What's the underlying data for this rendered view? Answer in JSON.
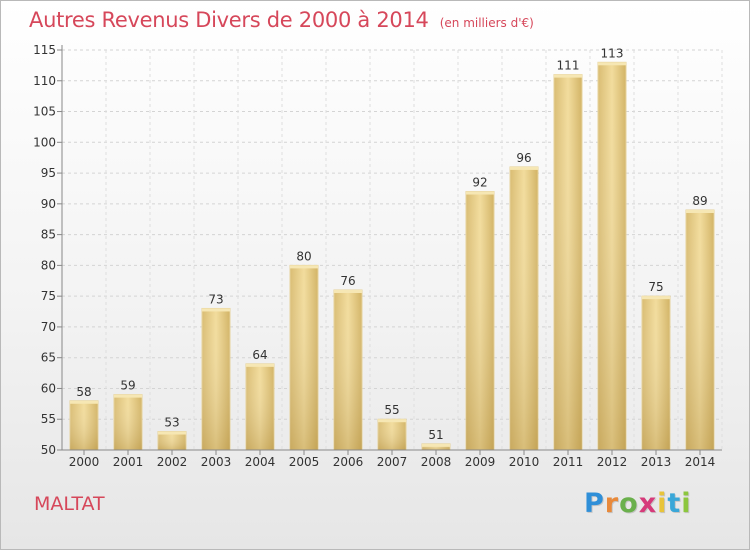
{
  "header": {
    "title": "Autres Revenus Divers de 2000 à 2014",
    "subtitle": "(en milliers d'€)"
  },
  "footer": {
    "location": "MALTAT",
    "logo": {
      "letters": [
        "P",
        "r",
        "o",
        "x",
        "i",
        "t",
        "i"
      ],
      "colors": [
        "#2f8fd8",
        "#e8893a",
        "#6ab04c",
        "#d63a7a",
        "#e8c43a",
        "#3aa7d8",
        "#8cc63e"
      ]
    }
  },
  "chart_data": {
    "type": "bar",
    "title": "Autres Revenus Divers de 2000 à 2014",
    "subtitle": "(en milliers d'€)",
    "categories": [
      "2000",
      "2001",
      "2002",
      "2003",
      "2004",
      "2005",
      "2006",
      "2007",
      "2008",
      "2009",
      "2010",
      "2011",
      "2012",
      "2013",
      "2014"
    ],
    "values": [
      58,
      59,
      53,
      73,
      64,
      80,
      76,
      55,
      51,
      92,
      96,
      111,
      113,
      75,
      89
    ],
    "ylim": [
      50,
      115
    ],
    "yticks": [
      50,
      55,
      60,
      65,
      70,
      75,
      80,
      85,
      90,
      95,
      100,
      105,
      110,
      115
    ],
    "grid": true,
    "bar_color": "#e8cf8a"
  }
}
